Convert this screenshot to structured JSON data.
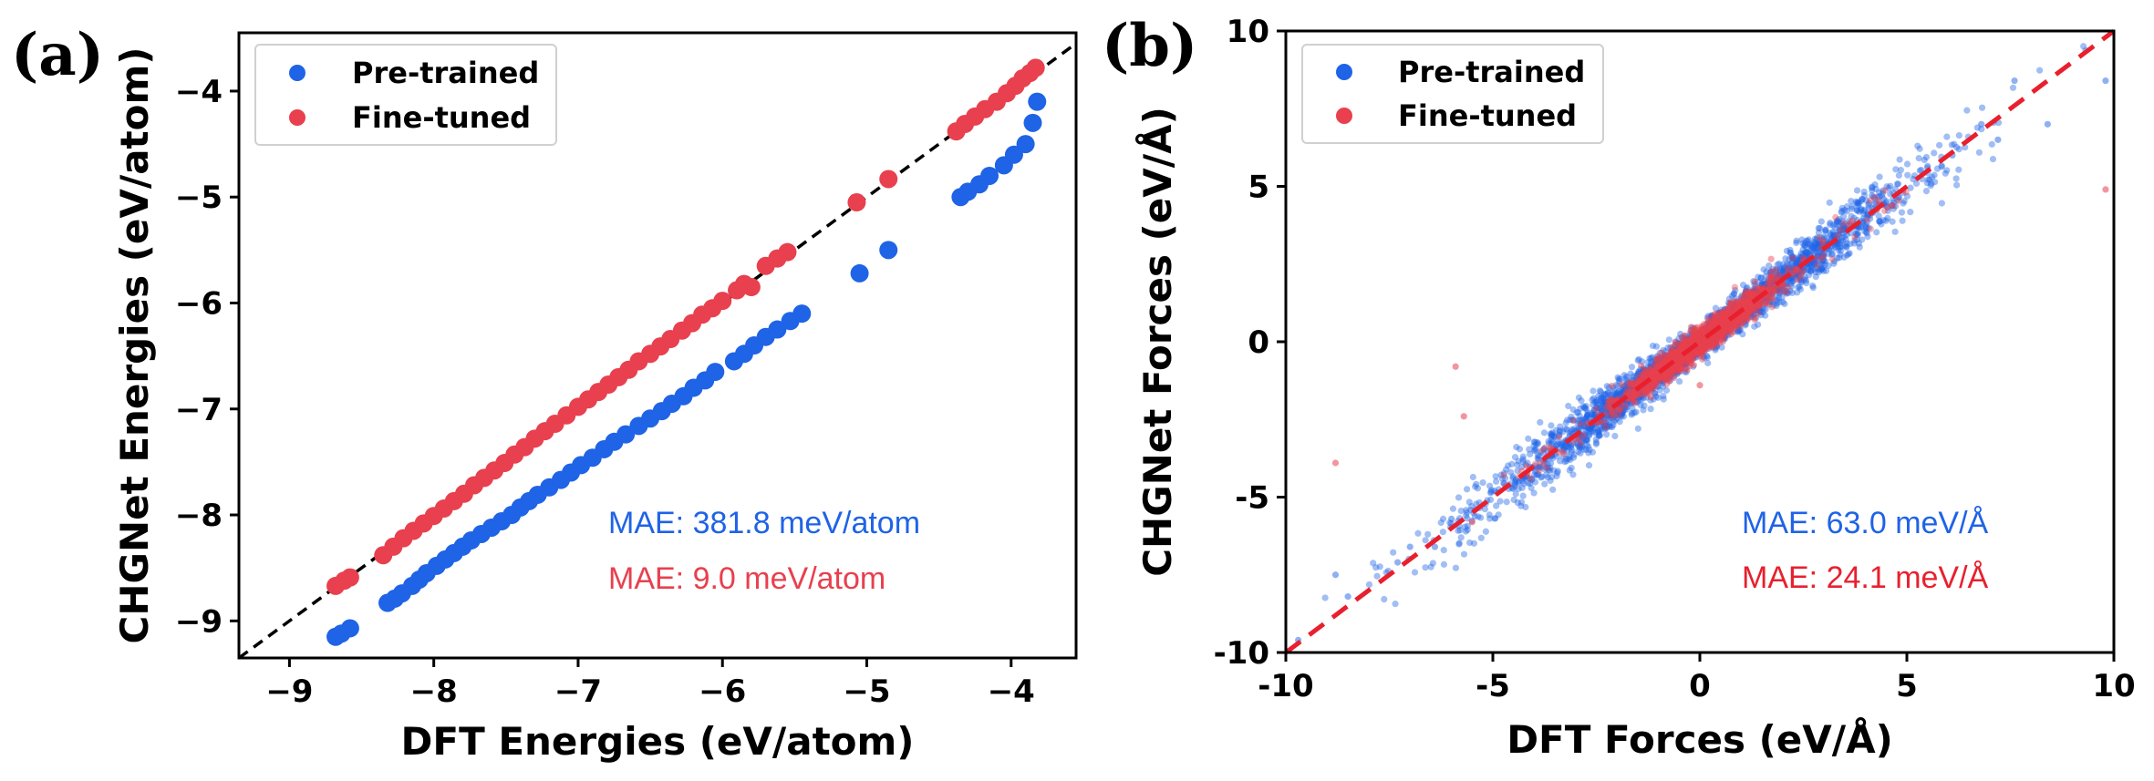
{
  "colors": {
    "pretrained": "#1f63e6",
    "finetuned": "#e8404e",
    "diag_a": "#000000",
    "diag_b": "#e8202e",
    "annot_pre": "#1f63e6",
    "annot_fine": "#e8202e"
  },
  "chart_data": [
    {
      "type": "scatter",
      "panel_label": "(a)",
      "xlabel": "DFT Energies (eV/atom)",
      "ylabel": "CHGNet Energies (eV/atom)",
      "xlim": [
        -9.35,
        -3.55
      ],
      "ylim": [
        -9.35,
        -3.45
      ],
      "xticks": [
        -9,
        -8,
        -7,
        -6,
        -5,
        -4
      ],
      "yticks": [
        -9,
        -8,
        -7,
        -6,
        -5,
        -4
      ],
      "xtick_labels": [
        "−9",
        "−8",
        "−7",
        "−6",
        "−5",
        "−4"
      ],
      "ytick_labels": [
        "−9",
        "−8",
        "−7",
        "−6",
        "−5",
        "−4"
      ],
      "grid": false,
      "legend_position": "top-left",
      "diagonal": "y=x",
      "legend": [
        "Pre-trained",
        "Fine-tuned"
      ],
      "annotations": [
        "MAE: 381.8 meV/atom",
        "MAE: 9.0 meV/atom"
      ],
      "series": [
        {
          "name": "Pre-trained",
          "x": [
            -8.68,
            -8.64,
            -8.58,
            -8.32,
            -8.27,
            -8.22,
            -8.15,
            -8.1,
            -8.05,
            -7.98,
            -7.92,
            -7.86,
            -7.8,
            -7.74,
            -7.67,
            -7.6,
            -7.53,
            -7.46,
            -7.4,
            -7.34,
            -7.28,
            -7.2,
            -7.12,
            -7.05,
            -6.98,
            -6.9,
            -6.82,
            -6.75,
            -6.67,
            -6.58,
            -6.5,
            -6.42,
            -6.35,
            -6.27,
            -6.2,
            -6.12,
            -6.05,
            -5.92,
            -5.85,
            -5.78,
            -5.7,
            -5.62,
            -5.53,
            -5.45,
            -5.05,
            -4.85,
            -4.35,
            -4.3,
            -4.22,
            -4.15,
            -4.05,
            -3.98,
            -3.9,
            -3.85,
            -3.82
          ],
          "y": [
            -9.15,
            -9.12,
            -9.07,
            -8.83,
            -8.79,
            -8.74,
            -8.67,
            -8.61,
            -8.55,
            -8.48,
            -8.42,
            -8.36,
            -8.3,
            -8.24,
            -8.18,
            -8.12,
            -8.06,
            -8.0,
            -7.93,
            -7.87,
            -7.81,
            -7.74,
            -7.67,
            -7.6,
            -7.53,
            -7.46,
            -7.38,
            -7.31,
            -7.24,
            -7.16,
            -7.09,
            -7.02,
            -6.95,
            -6.88,
            -6.8,
            -6.73,
            -6.65,
            -6.55,
            -6.48,
            -6.4,
            -6.32,
            -6.25,
            -6.17,
            -6.1,
            -5.72,
            -5.5,
            -5.0,
            -4.95,
            -4.88,
            -4.8,
            -4.7,
            -4.6,
            -4.5,
            -4.3,
            -4.1
          ]
        },
        {
          "name": "Fine-tuned",
          "x": [
            -8.68,
            -8.62,
            -8.58,
            -8.35,
            -8.28,
            -8.21,
            -8.14,
            -8.07,
            -8.0,
            -7.93,
            -7.86,
            -7.79,
            -7.72,
            -7.65,
            -7.58,
            -7.51,
            -7.44,
            -7.37,
            -7.3,
            -7.23,
            -7.16,
            -7.08,
            -7.0,
            -6.93,
            -6.86,
            -6.79,
            -6.72,
            -6.65,
            -6.58,
            -6.5,
            -6.43,
            -6.36,
            -6.28,
            -6.21,
            -6.14,
            -6.07,
            -6.0,
            -5.9,
            -5.85,
            -5.8,
            -5.7,
            -5.62,
            -5.55,
            -5.07,
            -4.85,
            -4.38,
            -4.32,
            -4.25,
            -4.18,
            -4.1,
            -4.03,
            -3.97,
            -3.92,
            -3.87,
            -3.83
          ],
          "y": [
            -8.67,
            -8.62,
            -8.59,
            -8.38,
            -8.3,
            -8.22,
            -8.15,
            -8.08,
            -8.01,
            -7.94,
            -7.87,
            -7.8,
            -7.72,
            -7.65,
            -7.58,
            -7.51,
            -7.43,
            -7.36,
            -7.28,
            -7.21,
            -7.14,
            -7.06,
            -6.98,
            -6.91,
            -6.84,
            -6.77,
            -6.7,
            -6.63,
            -6.55,
            -6.48,
            -6.41,
            -6.34,
            -6.26,
            -6.19,
            -6.11,
            -6.05,
            -5.98,
            -5.88,
            -5.82,
            -5.85,
            -5.65,
            -5.58,
            -5.52,
            -5.05,
            -4.83,
            -4.38,
            -4.31,
            -4.24,
            -4.17,
            -4.1,
            -4.02,
            -3.95,
            -3.88,
            -3.83,
            -3.78
          ]
        }
      ]
    },
    {
      "type": "scatter",
      "panel_label": "(b)",
      "xlabel": "DFT Forces (eV/Å)",
      "ylabel": "CHGNet Forces (eV/Å)",
      "xlim": [
        -10,
        10
      ],
      "ylim": [
        -10,
        10
      ],
      "xticks": [
        -10,
        -5,
        0,
        5,
        10
      ],
      "yticks": [
        -10,
        -5,
        0,
        5,
        10
      ],
      "xtick_labels": [
        "-10",
        "-5",
        "0",
        "5",
        "10"
      ],
      "ytick_labels": [
        "-10",
        "-5",
        "0",
        "5",
        "10"
      ],
      "grid": false,
      "legend_position": "top-left",
      "diagonal": "y=x (dashed)",
      "legend": [
        "Pre-trained",
        "Fine-tuned"
      ],
      "annotations": [
        "MAE: 63.0 meV/Å",
        "MAE: 24.1 meV/Å"
      ],
      "series": [
        {
          "name": "Pre-trained",
          "distribution": "dense cloud along y=x, x from about -9 to 9.8, spread about 0.4 eV/Å",
          "x": [
            -9.7,
            -8.8,
            -8.5,
            -7.3,
            -7.0,
            -6.4,
            -6.0,
            7.6,
            8.4,
            9.8,
            6.8,
            6.1,
            7.2
          ],
          "y": [
            -9.6,
            -7.5,
            -8.2,
            -7.1,
            -6.6,
            -6.6,
            -5.7,
            8.4,
            7.0,
            8.4,
            7.0,
            6.0,
            6.5
          ]
        },
        {
          "name": "Fine-tuned",
          "distribution": "tight cloud along y=x, x from about -5 to 5, densest near the origin",
          "x": [
            -8.8,
            -5.9,
            -5.7,
            -5.5,
            0.0,
            9.8,
            0.8
          ],
          "y": [
            -3.9,
            -0.8,
            -2.4,
            -5.8,
            -1.4,
            4.9,
            0.7
          ]
        }
      ]
    }
  ]
}
